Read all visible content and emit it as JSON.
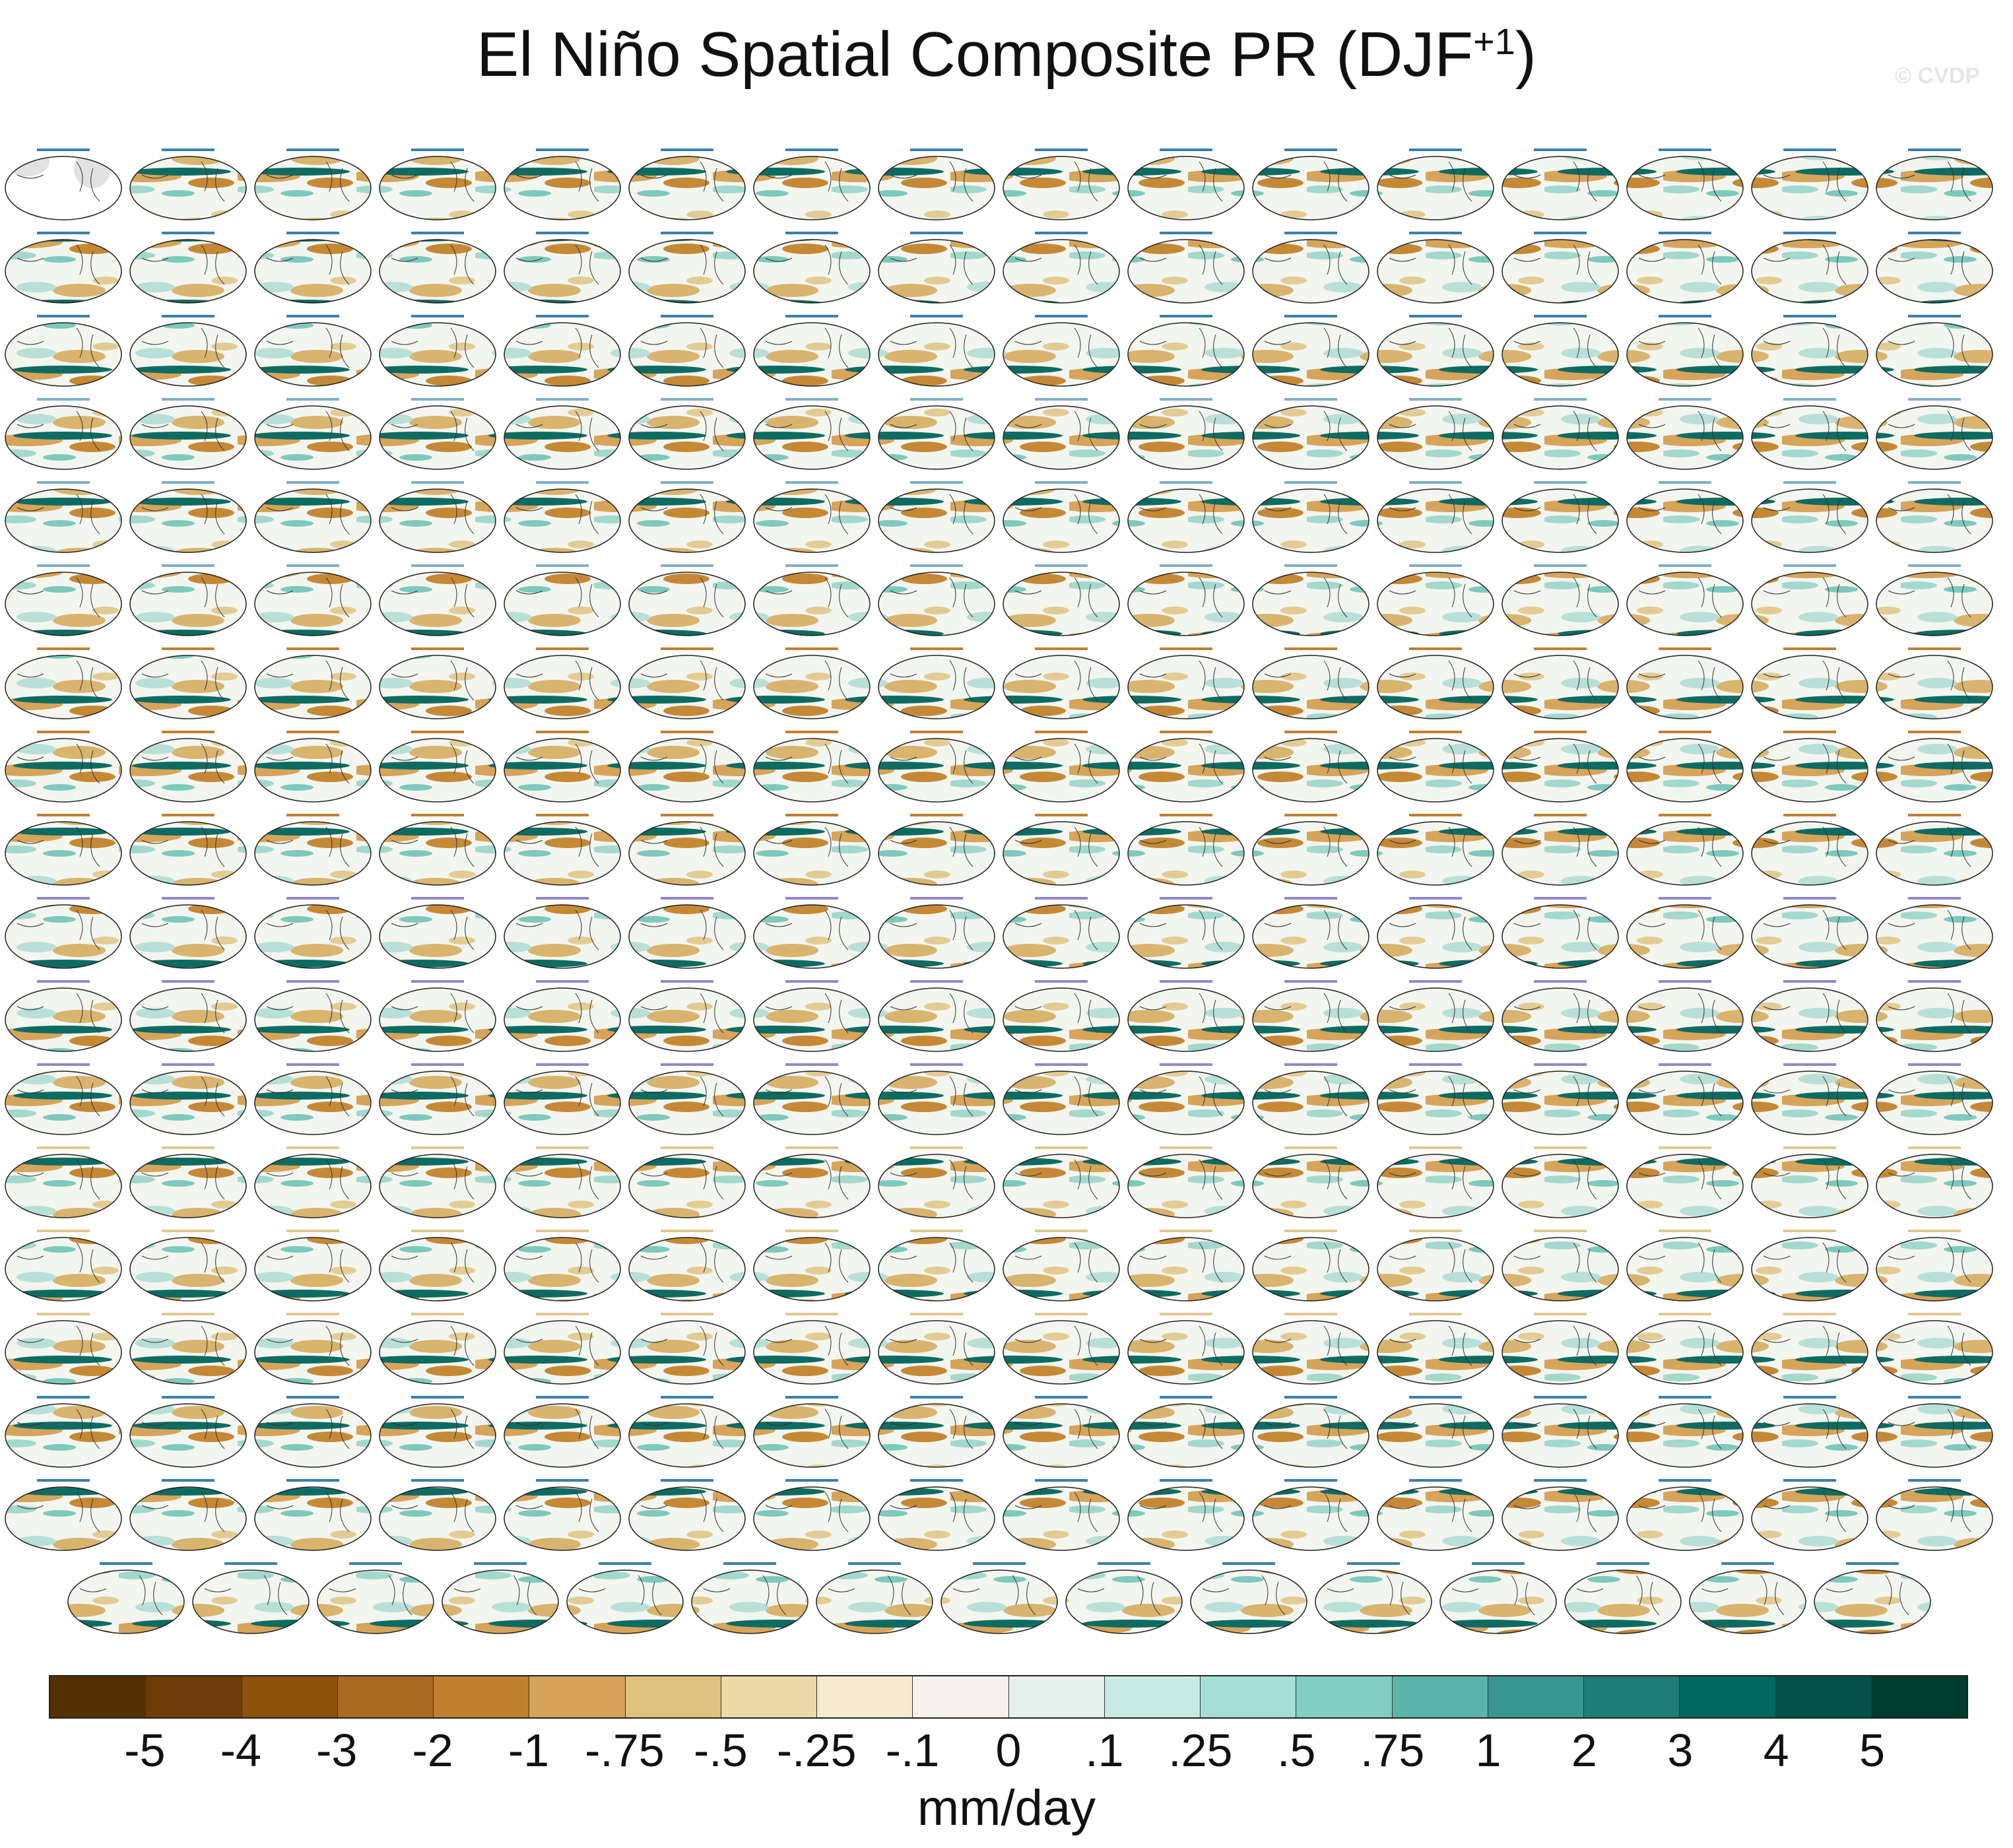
{
  "title": {
    "main": "El Niño Spatial Composite PR (DJF",
    "superscript": "+1",
    "close": ")"
  },
  "watermark": "© CVDP",
  "panels": {
    "rows": 18,
    "per_row": [
      16,
      16,
      16,
      16,
      16,
      16,
      16,
      16,
      16,
      16,
      16,
      16,
      16,
      16,
      16,
      16,
      16,
      15
    ],
    "first_panel_is_observation_land_mask": true,
    "title_colors": [
      "#3a7fb0",
      "#7fb0c8",
      "#c08030",
      "#8f86d0",
      "#e0c890"
    ]
  },
  "colorbar": {
    "colors": [
      "#543005",
      "#6e3c09",
      "#8c510a",
      "#a86a1e",
      "#bf812d",
      "#d5a45a",
      "#dfc27d",
      "#ecd9a8",
      "#f6ead0",
      "#f5f2ec",
      "#e6f1ee",
      "#c7eae5",
      "#a6dfd6",
      "#80cdc1",
      "#5ab4aa",
      "#35978f",
      "#1d7e76",
      "#01665e",
      "#02524a",
      "#003c30"
    ],
    "labels": [
      "-5",
      "-4",
      "-3",
      "-2",
      "-1",
      "-.75",
      "-.5",
      "-.25",
      "-.1",
      "0",
      ".1",
      ".25",
      ".5",
      ".75",
      "1",
      "2",
      "3",
      "4",
      "5"
    ],
    "units": "mm/day"
  }
}
